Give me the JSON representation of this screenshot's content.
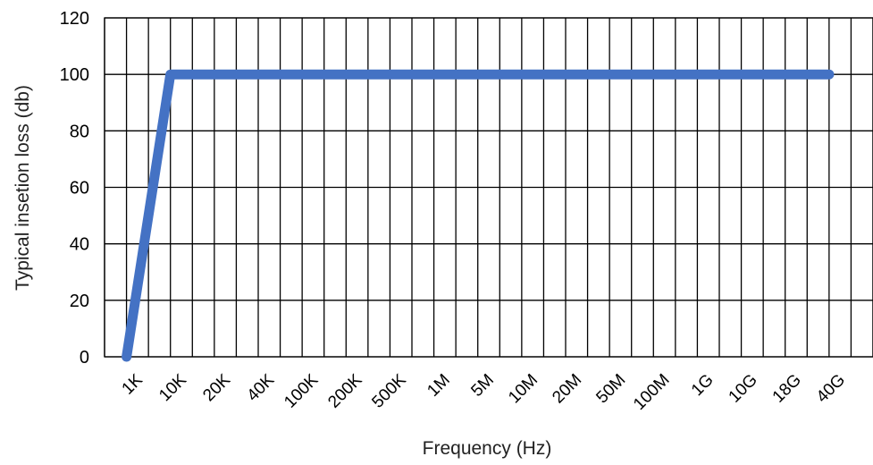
{
  "chart_data": {
    "type": "line",
    "title": "",
    "xlabel": "Frequency (Hz)",
    "ylabel": "Typical insetion loss (db)",
    "categories": [
      "1K",
      "10K",
      "20K",
      "40K",
      "100K",
      "200K",
      "500K",
      "1M",
      "5M",
      "10M",
      "20M",
      "50M",
      "100M",
      "1G",
      "10G",
      "18G",
      "40G"
    ],
    "series": [
      {
        "values": [
          0,
          100,
          100,
          100,
          100,
          100,
          100,
          100,
          100,
          100,
          100,
          100,
          100,
          100,
          100,
          100,
          100
        ]
      }
    ],
    "ylim": [
      0,
      120
    ],
    "yticks": [
      0,
      20,
      40,
      60,
      80,
      100,
      120
    ],
    "grid": true,
    "legend": "none",
    "colors": {
      "line": "#4472C4",
      "grid": "#000000"
    }
  }
}
